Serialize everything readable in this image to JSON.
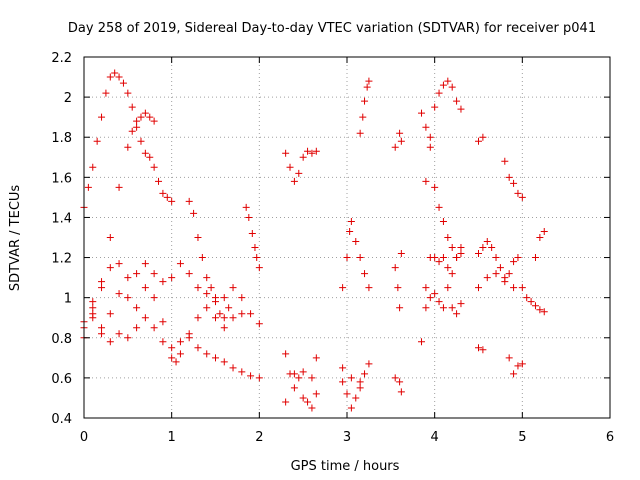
{
  "chart_data": {
    "type": "scatter",
    "title": "Day 258 of 2019, Sidereal Day-to-day VTEC variation (SDTVAR) for receiver p041",
    "xlabel": "GPS time / hours",
    "ylabel": "SDTVAR / TECUs",
    "xlim": [
      0,
      6
    ],
    "ylim": [
      0.4,
      2.2
    ],
    "xticks": [
      "0",
      "1",
      "2",
      "3",
      "4",
      "5",
      "6"
    ],
    "yticks": [
      "0.4",
      "0.6",
      "0.8",
      "1",
      "1.2",
      "1.4",
      "1.6",
      "1.8",
      "2",
      "2.2"
    ],
    "grid": true,
    "marker": "+",
    "color": "#e00000",
    "series": [
      {
        "name": "s1",
        "points": [
          [
            0.0,
            1.45
          ],
          [
            0.05,
            1.55
          ],
          [
            0.1,
            1.65
          ],
          [
            0.15,
            1.78
          ],
          [
            0.2,
            1.9
          ],
          [
            0.25,
            2.02
          ],
          [
            0.3,
            2.1
          ],
          [
            0.35,
            2.12
          ],
          [
            0.4,
            2.1
          ],
          [
            0.45,
            2.07
          ],
          [
            0.5,
            2.02
          ],
          [
            0.55,
            1.95
          ],
          [
            0.6,
            1.85
          ],
          [
            0.65,
            1.78
          ],
          [
            0.7,
            1.72
          ],
          [
            0.75,
            1.7
          ],
          [
            0.8,
            1.65
          ],
          [
            0.85,
            1.58
          ],
          [
            0.9,
            1.52
          ],
          [
            0.95,
            1.5
          ],
          [
            1.0,
            1.48
          ]
        ]
      },
      {
        "name": "s2",
        "points": [
          [
            0.1,
            0.95
          ],
          [
            0.2,
            1.05
          ],
          [
            0.3,
            1.3
          ],
          [
            0.4,
            1.55
          ],
          [
            0.5,
            1.75
          ],
          [
            0.55,
            1.83
          ],
          [
            0.6,
            1.88
          ],
          [
            0.65,
            1.9
          ],
          [
            0.7,
            1.92
          ],
          [
            0.75,
            1.9
          ],
          [
            0.8,
            1.88
          ]
        ]
      },
      {
        "name": "s3",
        "points": [
          [
            0.0,
            0.85
          ],
          [
            0.1,
            0.98
          ],
          [
            0.2,
            1.08
          ],
          [
            0.3,
            1.15
          ],
          [
            0.4,
            1.17
          ],
          [
            0.5,
            1.1
          ],
          [
            0.6,
            1.12
          ],
          [
            0.7,
            1.17
          ],
          [
            0.8,
            1.12
          ],
          [
            0.9,
            1.08
          ],
          [
            1.0,
            1.1
          ],
          [
            1.1,
            1.17
          ],
          [
            1.2,
            1.12
          ],
          [
            1.3,
            1.05
          ],
          [
            1.4,
            1.02
          ],
          [
            1.5,
            0.98
          ],
          [
            1.6,
            1.0
          ],
          [
            1.7,
            1.05
          ],
          [
            1.8,
            1.0
          ],
          [
            1.9,
            0.92
          ],
          [
            2.0,
            0.87
          ]
        ]
      },
      {
        "name": "s4",
        "points": [
          [
            0.0,
            0.88
          ],
          [
            0.1,
            0.92
          ],
          [
            0.2,
            0.85
          ],
          [
            0.3,
            0.92
          ],
          [
            0.4,
            1.02
          ],
          [
            0.5,
            1.0
          ],
          [
            0.6,
            0.95
          ],
          [
            0.7,
            1.05
          ],
          [
            0.8,
            1.0
          ],
          [
            0.9,
            0.88
          ],
          [
            1.0,
            0.7
          ],
          [
            1.05,
            0.68
          ],
          [
            1.1,
            0.72
          ],
          [
            1.2,
            0.82
          ],
          [
            1.3,
            0.9
          ],
          [
            1.4,
            0.95
          ],
          [
            1.5,
            0.9
          ],
          [
            1.6,
            0.85
          ],
          [
            1.7,
            0.9
          ],
          [
            1.8,
            0.92
          ]
        ]
      },
      {
        "name": "s5",
        "points": [
          [
            0.0,
            0.8
          ],
          [
            0.1,
            0.9
          ],
          [
            0.2,
            0.82
          ],
          [
            0.3,
            0.78
          ],
          [
            0.4,
            0.82
          ],
          [
            0.5,
            0.8
          ],
          [
            0.6,
            0.85
          ],
          [
            0.7,
            0.9
          ],
          [
            0.8,
            0.85
          ],
          [
            0.9,
            0.78
          ],
          [
            1.0,
            0.75
          ],
          [
            1.1,
            0.78
          ],
          [
            1.2,
            0.8
          ],
          [
            1.3,
            0.75
          ],
          [
            1.4,
            0.72
          ],
          [
            1.5,
            0.7
          ],
          [
            1.6,
            0.68
          ],
          [
            1.7,
            0.65
          ],
          [
            1.8,
            0.63
          ],
          [
            1.9,
            0.61
          ],
          [
            2.0,
            0.6
          ]
        ]
      },
      {
        "name": "s6",
        "points": [
          [
            1.2,
            1.48
          ],
          [
            1.25,
            1.42
          ],
          [
            1.3,
            1.3
          ],
          [
            1.35,
            1.2
          ],
          [
            1.4,
            1.1
          ],
          [
            1.45,
            1.05
          ],
          [
            1.5,
            1.0
          ],
          [
            1.55,
            0.92
          ],
          [
            1.6,
            0.9
          ],
          [
            1.65,
            0.95
          ]
        ]
      },
      {
        "name": "s7",
        "points": [
          [
            1.85,
            1.45
          ],
          [
            1.88,
            1.4
          ],
          [
            1.92,
            1.32
          ],
          [
            1.95,
            1.25
          ],
          [
            1.97,
            1.2
          ],
          [
            2.0,
            1.15
          ]
        ]
      },
      {
        "name": "s8",
        "points": [
          [
            2.3,
            1.72
          ],
          [
            2.35,
            1.65
          ],
          [
            2.4,
            1.58
          ],
          [
            2.45,
            1.62
          ],
          [
            2.5,
            1.7
          ],
          [
            2.55,
            1.73
          ],
          [
            2.6,
            1.72
          ],
          [
            2.65,
            1.73
          ]
        ]
      },
      {
        "name": "s9",
        "points": [
          [
            2.3,
            0.72
          ],
          [
            2.35,
            0.62
          ],
          [
            2.4,
            0.55
          ],
          [
            2.45,
            0.6
          ],
          [
            2.5,
            0.5
          ],
          [
            2.55,
            0.48
          ],
          [
            2.6,
            0.45
          ],
          [
            2.65,
            0.52
          ],
          [
            2.3,
            0.48
          ],
          [
            2.4,
            0.62
          ],
          [
            2.5,
            0.63
          ],
          [
            2.6,
            0.6
          ],
          [
            2.65,
            0.7
          ]
        ]
      },
      {
        "name": "s10",
        "points": [
          [
            2.95,
            0.58
          ],
          [
            3.0,
            0.52
          ],
          [
            3.05,
            0.45
          ],
          [
            3.1,
            0.5
          ],
          [
            3.15,
            0.55
          ],
          [
            3.2,
            0.62
          ],
          [
            3.25,
            0.67
          ],
          [
            2.95,
            0.65
          ],
          [
            3.05,
            0.6
          ],
          [
            3.15,
            0.58
          ]
        ]
      },
      {
        "name": "s11",
        "points": [
          [
            2.95,
            1.05
          ],
          [
            3.0,
            1.2
          ],
          [
            3.03,
            1.33
          ],
          [
            3.05,
            1.38
          ],
          [
            3.1,
            1.28
          ],
          [
            3.15,
            1.2
          ],
          [
            3.2,
            1.12
          ],
          [
            3.25,
            1.05
          ]
        ]
      },
      {
        "name": "s12",
        "points": [
          [
            3.15,
            1.82
          ],
          [
            3.18,
            1.9
          ],
          [
            3.2,
            1.98
          ],
          [
            3.23,
            2.05
          ],
          [
            3.25,
            2.08
          ]
        ]
      },
      {
        "name": "s13",
        "points": [
          [
            3.55,
            1.75
          ],
          [
            3.6,
            1.82
          ],
          [
            3.62,
            1.78
          ]
        ]
      },
      {
        "name": "s14",
        "points": [
          [
            3.55,
            1.15
          ],
          [
            3.58,
            1.05
          ],
          [
            3.6,
            0.95
          ],
          [
            3.62,
            1.22
          ]
        ]
      },
      {
        "name": "s15",
        "points": [
          [
            3.55,
            0.6
          ],
          [
            3.6,
            0.58
          ],
          [
            3.62,
            0.53
          ]
        ]
      },
      {
        "name": "s16",
        "points": [
          [
            3.85,
            1.92
          ],
          [
            3.9,
            1.85
          ],
          [
            3.95,
            1.8
          ],
          [
            4.0,
            1.95
          ],
          [
            4.05,
            2.02
          ],
          [
            4.1,
            2.06
          ],
          [
            4.15,
            2.08
          ],
          [
            4.2,
            2.05
          ],
          [
            4.25,
            1.98
          ],
          [
            4.3,
            1.94
          ]
        ]
      },
      {
        "name": "s17",
        "points": [
          [
            3.9,
            1.58
          ],
          [
            3.95,
            1.75
          ],
          [
            4.0,
            1.55
          ],
          [
            4.05,
            1.45
          ],
          [
            4.1,
            1.38
          ],
          [
            4.15,
            1.3
          ],
          [
            4.2,
            1.25
          ],
          [
            4.25,
            1.2
          ],
          [
            4.3,
            1.22
          ]
        ]
      },
      {
        "name": "s18",
        "points": [
          [
            3.85,
            0.78
          ],
          [
            3.9,
            0.95
          ],
          [
            3.95,
            1.2
          ],
          [
            4.0,
            1.2
          ],
          [
            4.05,
            1.18
          ],
          [
            4.1,
            1.2
          ],
          [
            4.15,
            1.15
          ],
          [
            4.2,
            1.12
          ],
          [
            4.25,
            1.2
          ],
          [
            4.3,
            1.25
          ]
        ]
      },
      {
        "name": "s19",
        "points": [
          [
            3.9,
            1.05
          ],
          [
            3.95,
            1.0
          ],
          [
            4.0,
            1.02
          ],
          [
            4.05,
            0.98
          ],
          [
            4.1,
            0.95
          ],
          [
            4.15,
            1.05
          ],
          [
            4.2,
            0.95
          ],
          [
            4.25,
            0.92
          ],
          [
            4.3,
            0.97
          ]
        ]
      },
      {
        "name": "s20",
        "points": [
          [
            4.5,
            1.78
          ],
          [
            4.55,
            1.8
          ]
        ]
      },
      {
        "name": "s21",
        "points": [
          [
            4.5,
            1.22
          ],
          [
            4.55,
            1.25
          ],
          [
            4.6,
            1.28
          ],
          [
            4.65,
            1.25
          ],
          [
            4.7,
            1.2
          ],
          [
            4.75,
            1.15
          ],
          [
            4.8,
            1.1
          ],
          [
            4.85,
            1.12
          ],
          [
            4.9,
            1.18
          ],
          [
            4.95,
            1.2
          ]
        ]
      },
      {
        "name": "s22",
        "points": [
          [
            4.5,
            1.05
          ],
          [
            4.6,
            1.1
          ],
          [
            4.7,
            1.12
          ],
          [
            4.8,
            1.08
          ],
          [
            4.9,
            1.05
          ],
          [
            5.0,
            1.05
          ],
          [
            5.05,
            1.0
          ],
          [
            5.1,
            0.98
          ],
          [
            5.15,
            0.96
          ],
          [
            5.2,
            0.94
          ],
          [
            5.25,
            0.93
          ]
        ]
      },
      {
        "name": "s23",
        "points": [
          [
            4.8,
            1.68
          ],
          [
            4.85,
            1.6
          ],
          [
            4.9,
            1.57
          ],
          [
            4.95,
            1.52
          ],
          [
            5.0,
            1.5
          ]
        ]
      },
      {
        "name": "s24",
        "points": [
          [
            5.15,
            1.2
          ],
          [
            5.2,
            1.3
          ],
          [
            5.25,
            1.33
          ]
        ]
      },
      {
        "name": "s25",
        "points": [
          [
            4.5,
            0.75
          ],
          [
            4.55,
            0.74
          ],
          [
            4.85,
            0.7
          ],
          [
            4.9,
            0.62
          ],
          [
            4.95,
            0.66
          ],
          [
            5.0,
            0.67
          ]
        ]
      }
    ]
  }
}
